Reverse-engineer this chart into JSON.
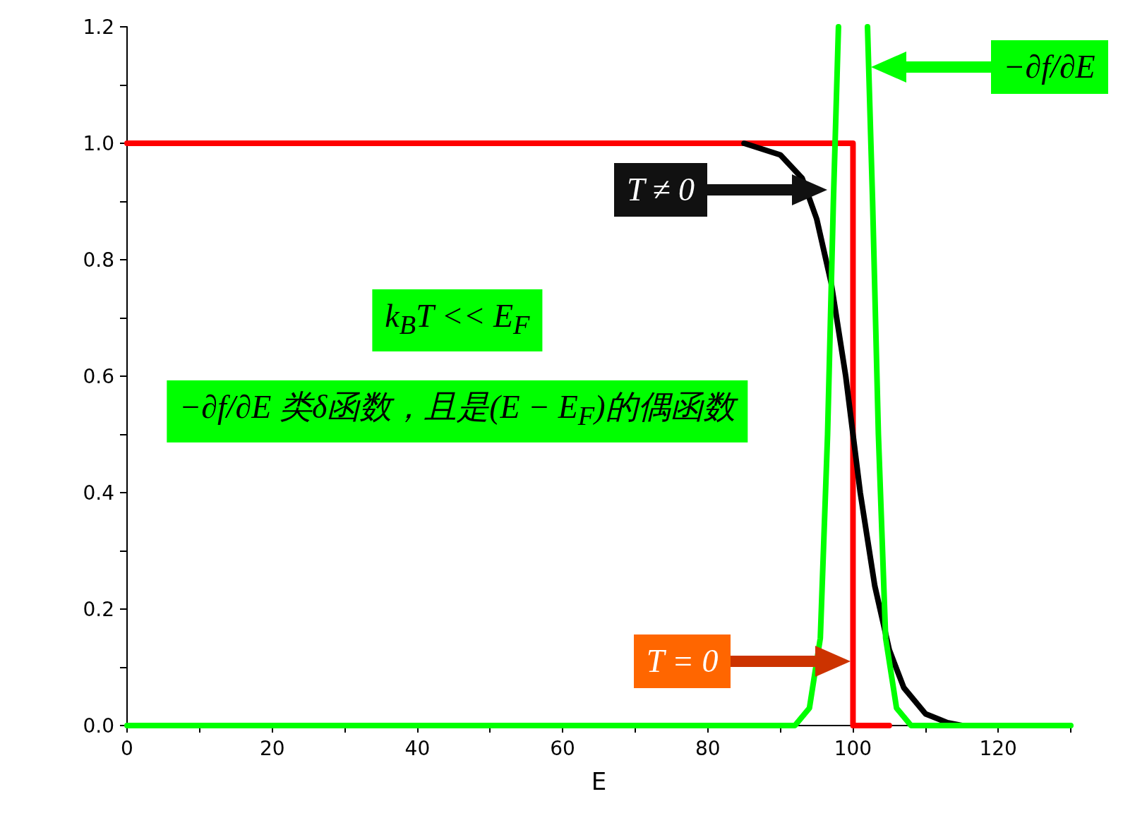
{
  "chart_data": {
    "type": "line",
    "xlabel": "E",
    "xlim": [
      0,
      130
    ],
    "xticks": [
      0,
      {
        "value": 10,
        "label": null
      },
      20,
      {
        "value": 30,
        "label": null
      },
      40,
      {
        "value": 50,
        "label": null
      },
      60,
      {
        "value": 70,
        "label": null
      },
      80,
      {
        "value": 90,
        "label": null
      },
      100,
      {
        "value": 110,
        "label": null
      },
      120,
      {
        "value": 130,
        "label": null
      }
    ],
    "ylim": [
      0,
      1.2
    ],
    "yticks": [
      {
        "value": 0,
        "label": "0.0"
      },
      {
        "value": 0.1,
        "label": null
      },
      {
        "value": 0.2,
        "label": "0.2"
      },
      {
        "value": 0.3,
        "label": null
      },
      {
        "value": 0.4,
        "label": "0.4"
      },
      {
        "value": 0.5,
        "label": null
      },
      {
        "value": 0.6,
        "label": "0.6"
      },
      {
        "value": 0.7,
        "label": null
      },
      {
        "value": 0.8,
        "label": "0.8"
      },
      {
        "value": 0.9,
        "label": null
      },
      {
        "value": 1.0,
        "label": "1.0"
      },
      {
        "value": 1.1,
        "label": null
      },
      {
        "value": 1.2,
        "label": "1.2"
      }
    ],
    "series": [
      {
        "color": "#ff0000",
        "x": [
          0,
          100,
          100,
          105
        ],
        "values": [
          1,
          1,
          0,
          0
        ]
      },
      {
        "color": "#000000",
        "x": [
          85,
          90,
          93,
          95,
          97,
          99,
          100,
          101,
          103,
          105,
          107,
          110,
          113,
          115
        ],
        "values": [
          1.0,
          0.98,
          0.94,
          0.87,
          0.76,
          0.6,
          0.5,
          0.4,
          0.24,
          0.13,
          0.065,
          0.02,
          0.005,
          0
        ]
      },
      {
        "color": "#00ff00",
        "x": [
          0,
          92,
          94,
          95.5,
          96.5,
          97.3,
          98,
          100,
          102,
          102.7,
          103.5,
          104.5,
          106,
          108,
          130
        ],
        "values": [
          0,
          0,
          0.03,
          0.15,
          0.5,
          0.9,
          1.2,
          null,
          1.2,
          0.9,
          0.5,
          0.15,
          0.03,
          0,
          0
        ]
      }
    ],
    "annotations": [
      "−∂f/∂E",
      "T ≠ 0",
      "k$_{B}$T << E$_{F}$",
      "−∂f/∂E 类δ函数，且是(E − E$_{F}$)的偶函数",
      "T = 0"
    ],
    "marker": "none",
    "line_style": "solid",
    "grid": false
  }
}
